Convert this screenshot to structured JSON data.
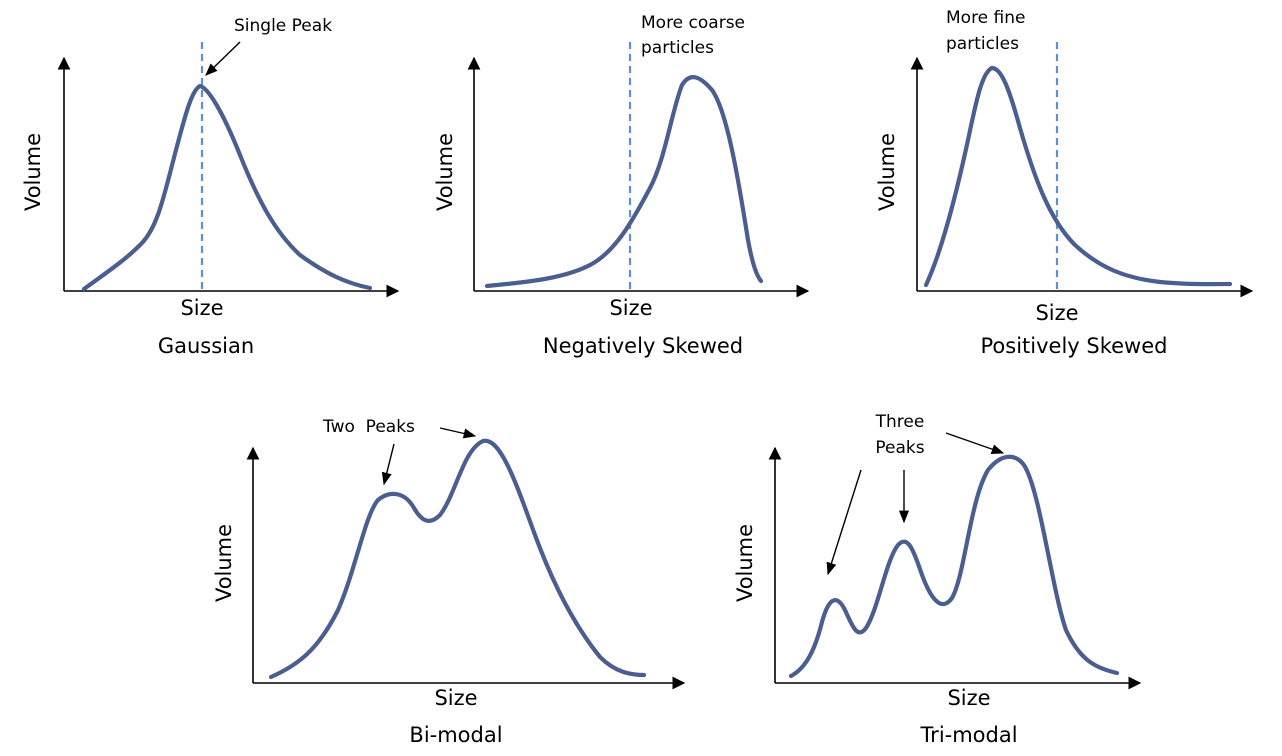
{
  "colors": {
    "curve": "#4a5e8f",
    "dashed_marker": "#5f8fd9",
    "axes": "#000000",
    "background": "#ffffff"
  },
  "panels": {
    "gaussian": {
      "title": "Gaussian",
      "xlabel": "Size",
      "ylabel": "Volume",
      "annotation": "Single Peak"
    },
    "negative": {
      "title": "Negatively Skewed",
      "xlabel": "Size",
      "ylabel": "Volume",
      "annotation_line1": "More coarse",
      "annotation_line2": "particles"
    },
    "positive": {
      "title": "Positively Skewed",
      "xlabel": "Size",
      "ylabel": "Volume",
      "annotation_line1": "More fine",
      "annotation_line2": "particles"
    },
    "bimodal": {
      "title": "Bi-modal",
      "xlabel": "Size",
      "ylabel": "Volume",
      "annotation": "Two  Peaks"
    },
    "trimodal": {
      "title": "Tri-modal",
      "xlabel": "Size",
      "ylabel": "Volume",
      "annotation_line1": "Three",
      "annotation_line2": "Peaks"
    }
  }
}
